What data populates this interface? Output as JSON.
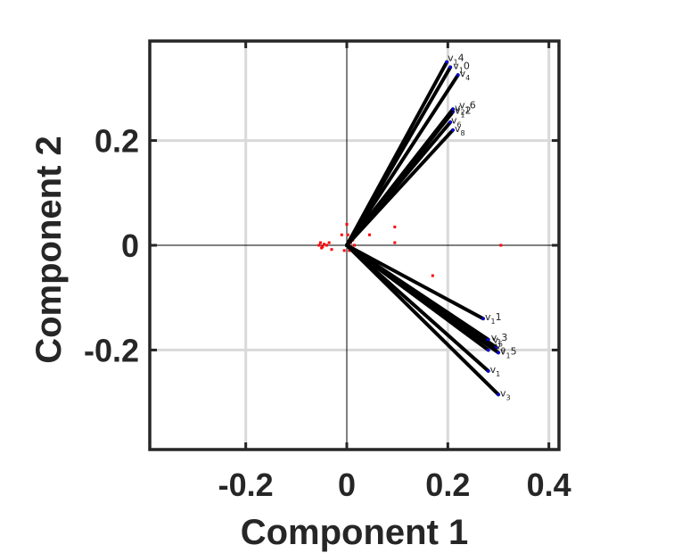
{
  "chart_data": {
    "type": "scatter",
    "subtype": "biplot",
    "title": "",
    "xlabel": "Component 1",
    "ylabel": "Component 2",
    "xlim": [
      -0.39,
      0.42
    ],
    "ylim": [
      -0.39,
      0.39
    ],
    "xticks": [
      -0.2,
      0,
      0.2,
      0.4
    ],
    "xtick_labels": [
      "-0.2",
      "0",
      "0.2",
      "0.4"
    ],
    "yticks": [
      -0.2,
      0,
      0.2
    ],
    "ytick_labels": [
      "-0.2",
      "0",
      "0.2"
    ],
    "grid": true,
    "box": true,
    "colors": {
      "frame": "#262626",
      "grid": "#d9d9d9",
      "vector": "#000000",
      "loading_marker": "#0000ff",
      "score_marker": "#ff0000",
      "label": "#222222"
    },
    "vectors": [
      {
        "name": "v1",
        "values": [
          0.28,
          -0.24
        ]
      },
      {
        "name": "v3",
        "values": [
          0.3,
          -0.285
        ]
      },
      {
        "name": "v5",
        "values": [
          0.296,
          -0.195
        ]
      },
      {
        "name": "v9",
        "values": [
          0.28,
          -0.2
        ]
      },
      {
        "name": "v11",
        "values": [
          0.27,
          -0.14
        ]
      },
      {
        "name": "v13",
        "values": [
          0.28,
          -0.18
        ]
      },
      {
        "name": "v15",
        "values": [
          0.3,
          -0.205
        ]
      },
      {
        "name": "v2",
        "values": [
          0.21,
          0.255
        ]
      },
      {
        "name": "v4",
        "values": [
          0.22,
          0.325
        ]
      },
      {
        "name": "v6",
        "values": [
          0.205,
          0.235
        ]
      },
      {
        "name": "v8",
        "values": [
          0.21,
          0.22
        ]
      },
      {
        "name": "v10",
        "values": [
          0.205,
          0.34
        ]
      },
      {
        "name": "v12",
        "values": [
          0.21,
          0.255
        ]
      },
      {
        "name": "v14",
        "values": [
          0.198,
          0.35
        ]
      },
      {
        "name": "v16",
        "values": [
          0.21,
          0.26
        ]
      }
    ],
    "vector_labels": [
      {
        "base": "v",
        "sub": "1",
        "rest": "",
        "at": [
          0.28,
          -0.24
        ]
      },
      {
        "base": "v",
        "sub": "3",
        "rest": "",
        "at": [
          0.3,
          -0.285
        ]
      },
      {
        "base": "v",
        "sub": "1",
        "rest": "5",
        "at": [
          0.3,
          -0.205
        ]
      },
      {
        "base": "v",
        "sub": "9",
        "rest": "",
        "at": [
          0.29,
          -0.195
        ]
      },
      {
        "base": "v",
        "sub": "1",
        "rest": "1",
        "at": [
          0.27,
          -0.14
        ]
      },
      {
        "base": "v",
        "sub": "1",
        "rest": "3",
        "at": [
          0.282,
          -0.179
        ]
      },
      {
        "base": "v",
        "sub": "5",
        "rest": "",
        "at": [
          0.285,
          -0.183
        ]
      },
      {
        "base": "v",
        "sub": "2",
        "rest": "",
        "at": [
          0.21,
          0.26
        ]
      },
      {
        "base": "v",
        "sub": "1",
        "rest": "2",
        "at": [
          0.21,
          0.255
        ]
      },
      {
        "base": "v",
        "sub": "1",
        "rest": "6",
        "at": [
          0.219,
          0.265
        ]
      },
      {
        "base": "v",
        "sub": "6",
        "rest": "",
        "at": [
          0.203,
          0.236
        ]
      },
      {
        "base": "v",
        "sub": "8",
        "rest": "",
        "at": [
          0.21,
          0.22
        ]
      },
      {
        "base": "v",
        "sub": "4",
        "rest": "",
        "at": [
          0.22,
          0.325
        ]
      },
      {
        "base": "v",
        "sub": "1",
        "rest": "0",
        "at": [
          0.207,
          0.34
        ]
      },
      {
        "base": "v",
        "sub": "1",
        "rest": "4",
        "at": [
          0.196,
          0.355
        ]
      }
    ],
    "scores": [
      [
        -0.055,
        0.0
      ],
      [
        -0.05,
        -0.005
      ],
      [
        -0.045,
        0.002
      ],
      [
        -0.052,
        0.005
      ],
      [
        -0.048,
        -0.003
      ],
      [
        -0.04,
        0.0
      ],
      [
        -0.035,
        0.005
      ],
      [
        -0.03,
        -0.008
      ],
      [
        -0.01,
        0.02
      ],
      [
        -0.005,
        -0.01
      ],
      [
        0.0,
        0.04
      ],
      [
        0.002,
        0.02
      ],
      [
        0.005,
        -0.01
      ],
      [
        0.008,
        0.005
      ],
      [
        0.012,
        0.01
      ],
      [
        0.015,
        0.0
      ],
      [
        0.045,
        0.02
      ],
      [
        0.095,
        0.035
      ],
      [
        0.095,
        0.005
      ],
      [
        0.17,
        -0.058
      ],
      [
        0.305,
        0.0
      ],
      [
        0.42,
        0.0
      ]
    ]
  }
}
